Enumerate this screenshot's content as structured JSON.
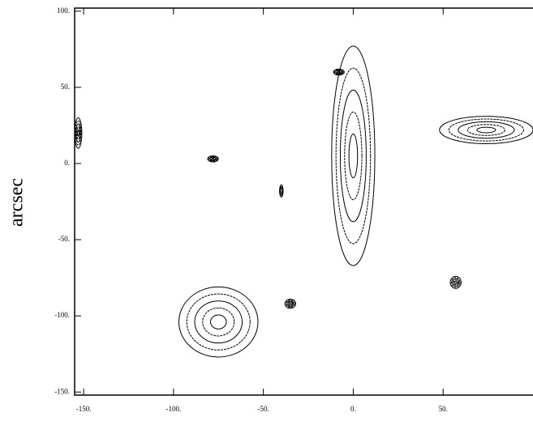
{
  "chart_data": {
    "type": "contour",
    "ylabel": "arcsec",
    "xlim": [
      -155,
      100
    ],
    "ylim": [
      -152,
      102
    ],
    "xticks": [
      {
        "value": -150,
        "label": "-150."
      },
      {
        "value": -100,
        "label": "-100."
      },
      {
        "value": -50,
        "label": "-50."
      },
      {
        "value": 0,
        "label": "0."
      },
      {
        "value": 50,
        "label": "50."
      }
    ],
    "yticks": [
      {
        "value": 100,
        "label": "100."
      },
      {
        "value": 50,
        "label": "50."
      },
      {
        "value": 0,
        "label": "0."
      },
      {
        "value": -50,
        "label": "-50."
      },
      {
        "value": -100,
        "label": "-100."
      },
      {
        "value": -150,
        "label": "-150."
      }
    ],
    "color": "#000000",
    "sources": {
      "x": [
        0,
        -75,
        74,
        57,
        -35,
        -153,
        -78,
        -8,
        -40
      ],
      "y": [
        5,
        -104,
        22,
        -78,
        -92,
        20,
        3,
        60,
        -18
      ],
      "rx": [
        12,
        22,
        26,
        3,
        3,
        2,
        3,
        3,
        1
      ],
      "ry": [
        72,
        23,
        9,
        4,
        3,
        10,
        2,
        2,
        4
      ]
    }
  }
}
